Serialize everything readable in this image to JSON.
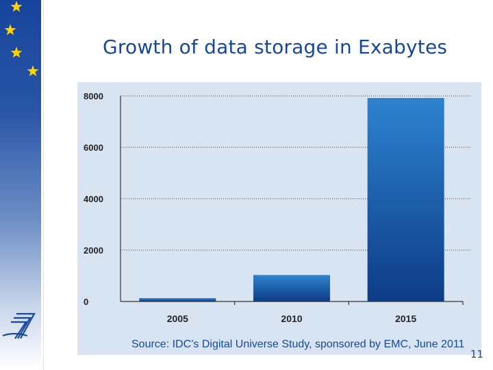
{
  "slide": {
    "title": "Growth of data storage in Exabytes",
    "page_number": "11",
    "logo": "FP7"
  },
  "colors": {
    "accent_blue": "#16489a",
    "bar_top": "#2d83d0",
    "bar_bottom": "#0d3b86",
    "panel_bg": "#d8e4f2",
    "star": "#ffd400"
  },
  "icons": [
    "star-icon",
    "fp7-logo-icon"
  ],
  "chart_data": {
    "type": "bar",
    "title": "",
    "xlabel": "",
    "ylabel": "",
    "categories": [
      "2005",
      "2010",
      "2015"
    ],
    "values": [
      130,
      1030,
      7920
    ],
    "ylim": [
      0,
      8000
    ],
    "yticks": [
      "0",
      "2000",
      "4000",
      "6000",
      "8000"
    ],
    "grid": true,
    "source": "Source: IDC’s Digital Universe Study, sponsored by EMC, June 2011"
  }
}
